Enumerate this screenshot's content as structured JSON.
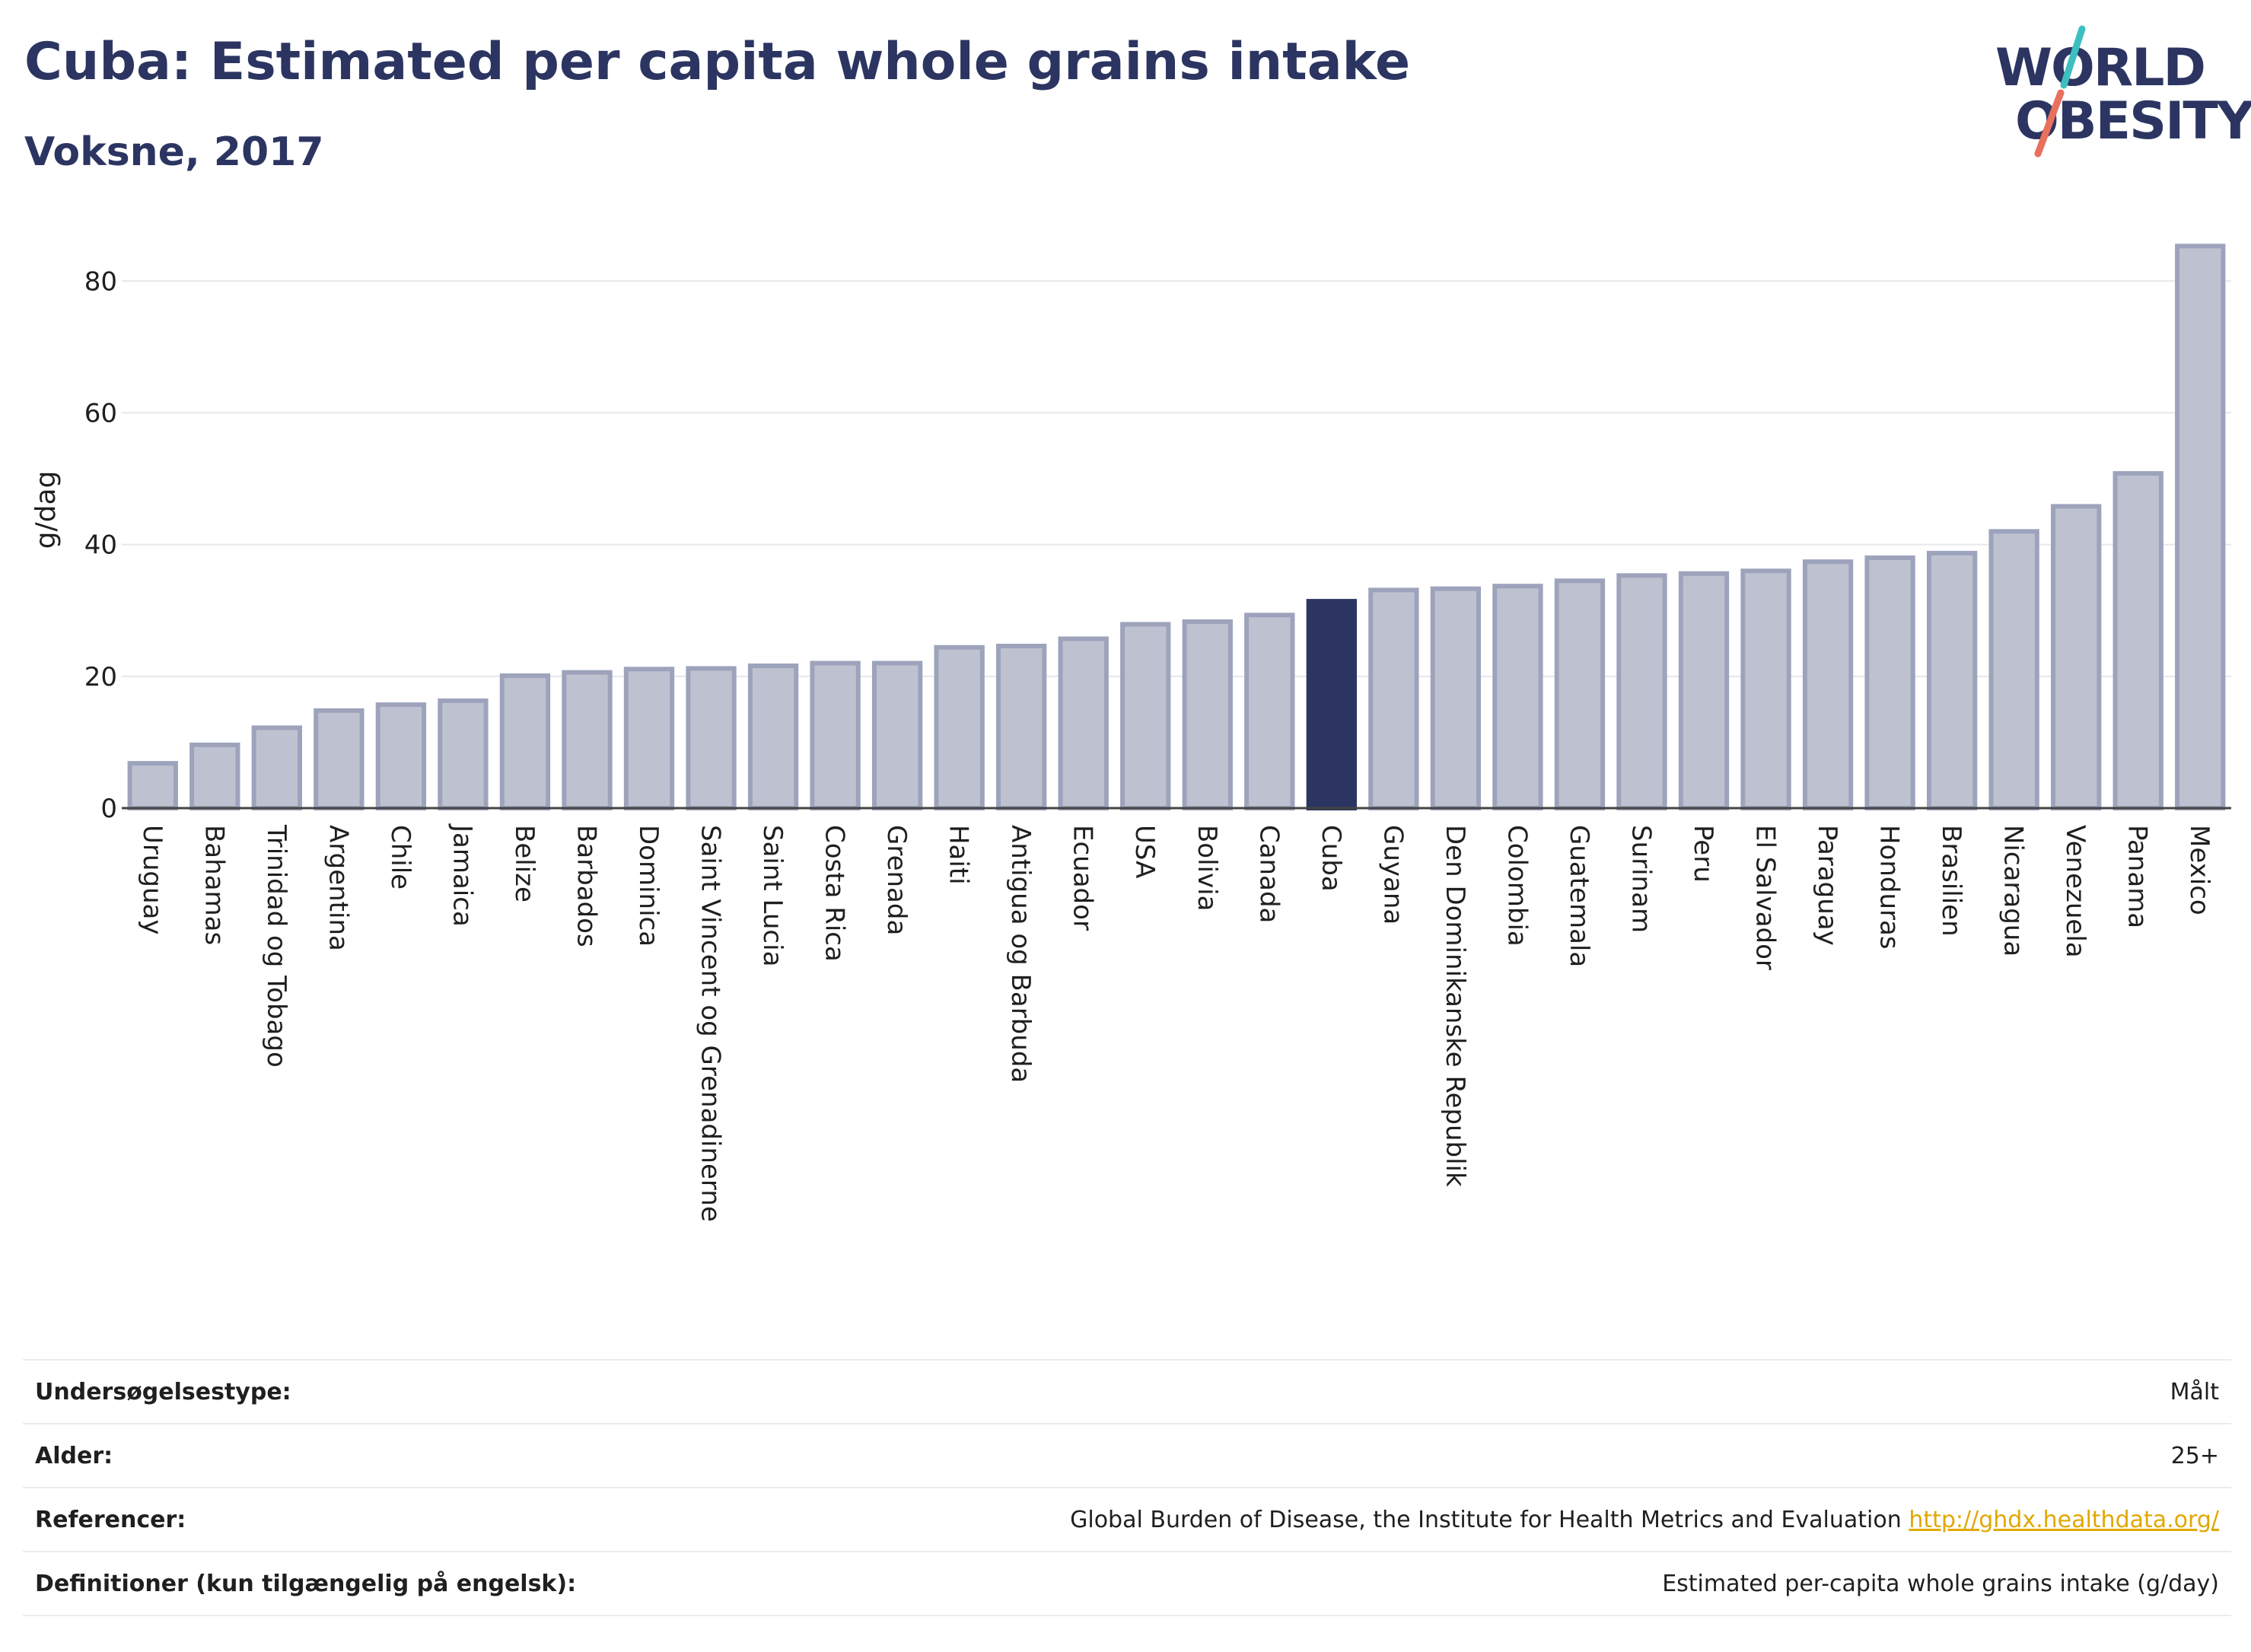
{
  "header": {
    "title": "Cuba: Estimated per capita whole grains intake",
    "subtitle": "Voksne, 2017"
  },
  "logo": {
    "line1": "WORLD",
    "line2": "OBESITY",
    "colors": [
      "#3dbfc0",
      "#e8705c"
    ]
  },
  "colors": {
    "bar": "#bec2d0",
    "bar_stroke": "#9ea3bc",
    "highlight": "#2c3561",
    "grid": "#e5e7ec"
  },
  "chart_data": {
    "type": "bar",
    "title": "Cuba: Estimated per capita whole grains intake",
    "subtitle": "Voksne, 2017",
    "ylabel": "g/dag",
    "xlabel": "",
    "ylim": [
      0,
      88
    ],
    "yticks": [
      0,
      20,
      40,
      60,
      80
    ],
    "grid": true,
    "highlight": "Cuba",
    "categories": [
      "Uruguay",
      "Bahamas",
      "Trinidad og Tobago",
      "Argentina",
      "Chile",
      "Jamaica",
      "Belize",
      "Barbados",
      "Dominica",
      "Saint Vincent og Grenadinerne",
      "Saint Lucia",
      "Costa Rica",
      "Grenada",
      "Haiti",
      "Antigua og Barbuda",
      "Ecuador",
      "USA",
      "Bolivia",
      "Canada",
      "Cuba",
      "Guyana",
      "Den Dominikanske Republik",
      "Colombia",
      "Guatemala",
      "Surinam",
      "Peru",
      "El Salvador",
      "Paraguay",
      "Honduras",
      "Brasilien",
      "Nicaragua",
      "Venezuela",
      "Panama",
      "Mexico"
    ],
    "values": [
      6.8,
      9.6,
      12.2,
      14.8,
      15.7,
      16.3,
      20.1,
      20.6,
      21.1,
      21.2,
      21.6,
      22.0,
      22.0,
      24.4,
      24.6,
      25.7,
      27.9,
      28.3,
      29.3,
      31.4,
      33.1,
      33.3,
      33.7,
      34.5,
      35.3,
      35.6,
      36.0,
      37.4,
      38.0,
      38.7,
      42.0,
      45.8,
      50.8,
      85.3
    ]
  },
  "info": [
    {
      "label": "Undersøgelsestype:",
      "value": "Målt"
    },
    {
      "label": "Alder:",
      "value": "25+"
    },
    {
      "label": "Referencer:",
      "value": "Global Burden of Disease, the Institute for Health Metrics and Evaluation",
      "link": "http://ghdx.healthdata.org/"
    },
    {
      "label": "Definitioner (kun tilgængelig på engelsk):",
      "value": "Estimated per-capita whole grains intake (g/day)"
    }
  ]
}
